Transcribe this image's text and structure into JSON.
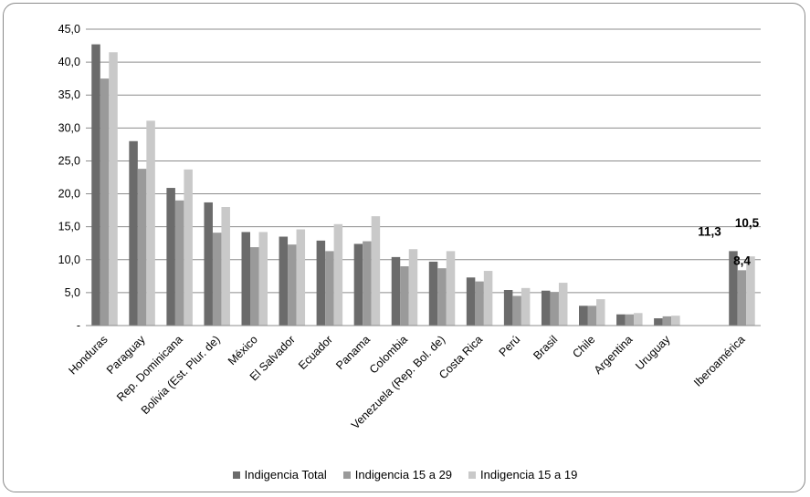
{
  "chart_data": {
    "type": "bar",
    "title": "",
    "xlabel": "",
    "ylabel": "",
    "ylim": [
      0,
      45
    ],
    "yticks": [
      "-",
      "5,0",
      "10,0",
      "15,0",
      "20,0",
      "25,0",
      "30,0",
      "35,0",
      "40,0",
      "45,0"
    ],
    "grid": true,
    "legend_position": "bottom",
    "categories": [
      "Honduras",
      "Paraguay",
      "Rep. Dominicana",
      "Bolivia (Est. Plur. de)",
      "México",
      "El Salvador",
      "Ecuador",
      "Panama",
      "Colombia",
      "Venezuela (Rep. Bol. de)",
      "Costa Rica",
      "Perú",
      "Brasil",
      "Chile",
      "Argentina",
      "Uruguay",
      "",
      "Iberoamérica"
    ],
    "series": [
      {
        "name": "Indigencia Total",
        "color": "#6b6b6b",
        "values": [
          42.7,
          28.0,
          20.9,
          18.7,
          14.2,
          13.5,
          12.9,
          12.4,
          10.4,
          9.7,
          7.3,
          5.4,
          5.3,
          3.0,
          1.7,
          1.1,
          null,
          11.3
        ]
      },
      {
        "name": "Indigencia 15 a 29",
        "color": "#9a9a9a",
        "values": [
          37.5,
          23.8,
          19.0,
          14.1,
          11.9,
          12.3,
          11.3,
          12.8,
          9.0,
          8.7,
          6.7,
          4.5,
          5.1,
          3.0,
          1.7,
          1.4,
          null,
          8.4
        ]
      },
      {
        "name": "Indigencia 15 a 19",
        "color": "#c9c9c9",
        "values": [
          41.5,
          31.1,
          23.7,
          18.0,
          14.2,
          14.6,
          15.4,
          16.6,
          11.6,
          11.3,
          8.3,
          5.7,
          6.5,
          4.0,
          1.9,
          1.5,
          null,
          10.5
        ]
      }
    ],
    "data_labels": [
      {
        "category_index": 17,
        "series_index": 0,
        "text": "11,3"
      },
      {
        "category_index": 17,
        "series_index": 1,
        "text": "8,4"
      },
      {
        "category_index": 17,
        "series_index": 2,
        "text": "10,5"
      }
    ]
  }
}
